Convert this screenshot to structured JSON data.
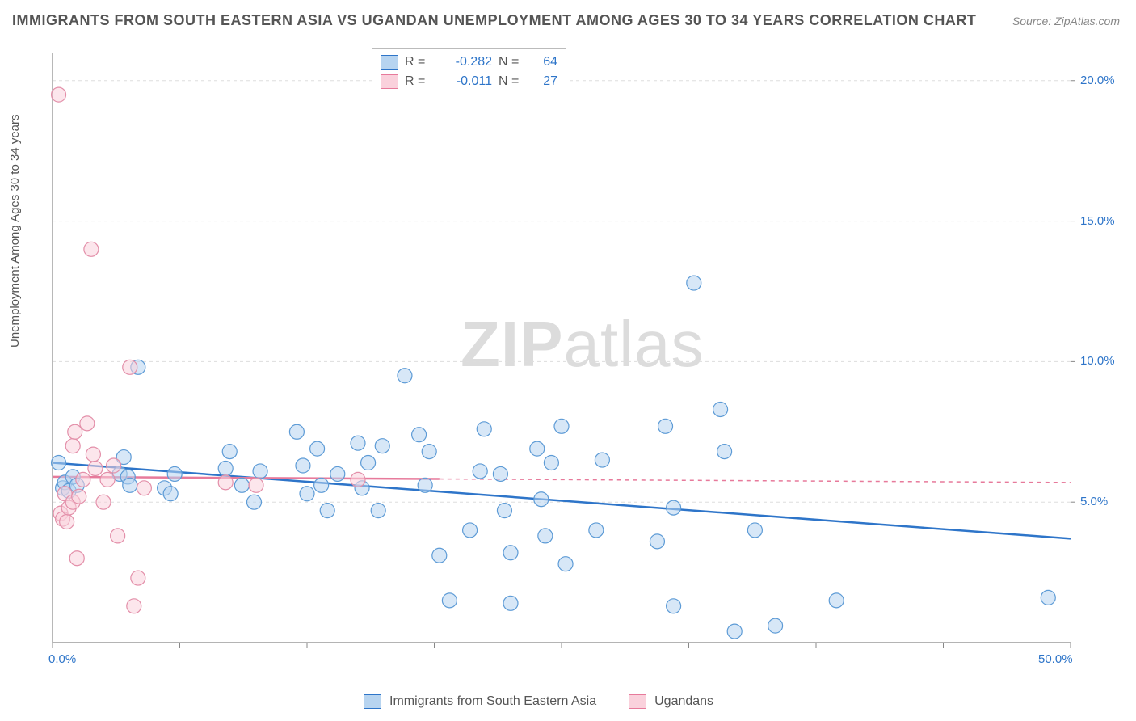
{
  "title": "IMMIGRANTS FROM SOUTH EASTERN ASIA VS UGANDAN UNEMPLOYMENT AMONG AGES 30 TO 34 YEARS CORRELATION CHART",
  "source": "Source: ZipAtlas.com",
  "ylabel": "Unemployment Among Ages 30 to 34 years",
  "watermark_bold": "ZIP",
  "watermark_light": "atlas",
  "chart": {
    "type": "scatter",
    "xlim": [
      0,
      50
    ],
    "ylim": [
      0,
      21
    ],
    "xtick_positions": [
      0,
      50
    ],
    "xtick_labels": [
      "0.0%",
      "50.0%"
    ],
    "xtick_minor_positions": [
      6.25,
      12.5,
      18.75,
      25,
      31.25,
      37.5,
      43.75
    ],
    "ytick_positions": [
      5,
      10,
      15,
      20
    ],
    "ytick_labels": [
      "5.0%",
      "10.0%",
      "15.0%",
      "20.0%"
    ],
    "background_color": "#ffffff",
    "grid_color": "#dddddd",
    "axis_color": "#888888",
    "axis_label_color": "#2e75c9",
    "marker_radius": 9,
    "marker_stroke_width": 1.2,
    "trend_line_width": 2.5,
    "series": [
      {
        "name": "Immigrants from South Eastern Asia",
        "fill": "#b7d4f0",
        "stroke": "#5d9bd6",
        "fill_opacity": 0.55,
        "R": "-0.282",
        "N": "64",
        "trend": {
          "x1": 0,
          "y1": 6.4,
          "x2": 50,
          "y2": 3.7,
          "solid_until_x": 50,
          "color": "#2e75c9"
        },
        "points": [
          [
            0.3,
            6.4
          ],
          [
            0.5,
            5.5
          ],
          [
            0.6,
            5.7
          ],
          [
            0.8,
            5.4
          ],
          [
            1.0,
            5.9
          ],
          [
            1.2,
            5.6
          ],
          [
            3.3,
            6.0
          ],
          [
            3.5,
            6.6
          ],
          [
            3.7,
            5.9
          ],
          [
            3.8,
            5.6
          ],
          [
            4.2,
            9.8
          ],
          [
            5.5,
            5.5
          ],
          [
            5.8,
            5.3
          ],
          [
            6.0,
            6.0
          ],
          [
            8.5,
            6.2
          ],
          [
            8.7,
            6.8
          ],
          [
            9.3,
            5.6
          ],
          [
            9.9,
            5.0
          ],
          [
            10.2,
            6.1
          ],
          [
            12.0,
            7.5
          ],
          [
            12.3,
            6.3
          ],
          [
            12.5,
            5.3
          ],
          [
            13.0,
            6.9
          ],
          [
            13.2,
            5.6
          ],
          [
            13.5,
            4.7
          ],
          [
            14.0,
            6.0
          ],
          [
            15.0,
            7.1
          ],
          [
            15.2,
            5.5
          ],
          [
            15.5,
            6.4
          ],
          [
            16.0,
            4.7
          ],
          [
            16.2,
            7.0
          ],
          [
            17.3,
            9.5
          ],
          [
            18.0,
            7.4
          ],
          [
            18.3,
            5.6
          ],
          [
            18.5,
            6.8
          ],
          [
            19.0,
            3.1
          ],
          [
            19.5,
            1.5
          ],
          [
            20.5,
            4.0
          ],
          [
            21.0,
            6.1
          ],
          [
            21.2,
            7.6
          ],
          [
            22.0,
            6.0
          ],
          [
            22.2,
            4.7
          ],
          [
            22.5,
            1.4
          ],
          [
            22.5,
            3.2
          ],
          [
            23.8,
            6.9
          ],
          [
            24.0,
            5.1
          ],
          [
            24.2,
            3.8
          ],
          [
            24.5,
            6.4
          ],
          [
            25.0,
            7.7
          ],
          [
            25.2,
            2.8
          ],
          [
            26.7,
            4.0
          ],
          [
            27.0,
            6.5
          ],
          [
            29.7,
            3.6
          ],
          [
            30.1,
            7.7
          ],
          [
            30.5,
            1.3
          ],
          [
            30.5,
            4.8
          ],
          [
            31.5,
            12.8
          ],
          [
            32.8,
            8.3
          ],
          [
            33.0,
            6.8
          ],
          [
            33.5,
            0.4
          ],
          [
            34.5,
            4.0
          ],
          [
            35.5,
            0.6
          ],
          [
            38.5,
            1.5
          ],
          [
            48.9,
            1.6
          ]
        ]
      },
      {
        "name": "Ugandans",
        "fill": "#fad1dc",
        "stroke": "#e38fa9",
        "fill_opacity": 0.55,
        "R": "-0.011",
        "N": "27",
        "trend": {
          "x1": 0,
          "y1": 5.9,
          "x2": 50,
          "y2": 5.7,
          "solid_until_x": 19,
          "color": "#e77a9b"
        },
        "points": [
          [
            0.3,
            19.5
          ],
          [
            0.4,
            4.6
          ],
          [
            0.5,
            4.4
          ],
          [
            0.6,
            5.3
          ],
          [
            0.7,
            4.3
          ],
          [
            0.8,
            4.8
          ],
          [
            1.0,
            7.0
          ],
          [
            1.0,
            5.0
          ],
          [
            1.1,
            7.5
          ],
          [
            1.2,
            3.0
          ],
          [
            1.3,
            5.2
          ],
          [
            1.5,
            5.8
          ],
          [
            1.7,
            7.8
          ],
          [
            1.9,
            14.0
          ],
          [
            2.0,
            6.7
          ],
          [
            2.1,
            6.2
          ],
          [
            2.5,
            5.0
          ],
          [
            2.7,
            5.8
          ],
          [
            3.0,
            6.3
          ],
          [
            3.2,
            3.8
          ],
          [
            3.8,
            9.8
          ],
          [
            4.0,
            1.3
          ],
          [
            4.2,
            2.3
          ],
          [
            4.5,
            5.5
          ],
          [
            8.5,
            5.7
          ],
          [
            10.0,
            5.6
          ],
          [
            15.0,
            5.8
          ]
        ]
      }
    ]
  },
  "legend_top": {
    "rows": [
      {
        "swatch_class": "sw-blue",
        "r_label": "R =",
        "r_val": "-0.282",
        "n_label": "N =",
        "n_val": "64"
      },
      {
        "swatch_class": "sw-pink",
        "r_label": "R =",
        "r_val": "-0.011",
        "n_label": "N =",
        "n_val": "27"
      }
    ]
  },
  "legend_bottom": {
    "items": [
      {
        "swatch_class": "sw-blue",
        "label": "Immigrants from South Eastern Asia"
      },
      {
        "swatch_class": "sw-pink",
        "label": "Ugandans"
      }
    ]
  }
}
